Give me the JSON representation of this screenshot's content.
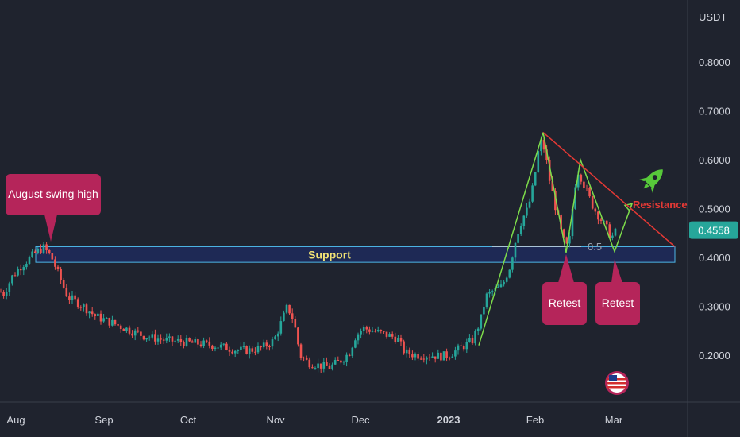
{
  "chart_data": {
    "type": "candlestick",
    "currency": "USDT",
    "y_ticks": [
      "0.8000",
      "0.7000",
      "0.6000",
      "0.5000",
      "0.4000",
      "0.3000",
      "0.2000"
    ],
    "x_ticks": [
      "Aug",
      "Sep",
      "Oct",
      "Nov",
      "Dec",
      "2023",
      "Feb",
      "Mar"
    ],
    "last_price": "0.4558",
    "support_zone": {
      "label": "Support",
      "low": 0.39,
      "high": 0.422
    },
    "fib_level": "0.5",
    "resistance_label": "Resistance",
    "callouts": {
      "swing_high": "August swing high",
      "retest_1": "Retest",
      "retest_2": "Retest"
    },
    "price_path": [
      [
        0,
        0.33
      ],
      [
        5,
        0.325
      ],
      [
        15,
        0.36
      ],
      [
        25,
        0.38
      ],
      [
        35,
        0.395
      ],
      [
        45,
        0.41
      ],
      [
        55,
        0.42
      ],
      [
        65,
        0.4
      ],
      [
        75,
        0.36
      ],
      [
        85,
        0.32
      ],
      [
        95,
        0.31
      ],
      [
        105,
        0.3
      ],
      [
        120,
        0.28
      ],
      [
        135,
        0.27
      ],
      [
        150,
        0.26
      ],
      [
        165,
        0.25
      ],
      [
        180,
        0.24
      ],
      [
        195,
        0.235
      ],
      [
        210,
        0.23
      ],
      [
        225,
        0.228
      ],
      [
        240,
        0.225
      ],
      [
        255,
        0.223
      ],
      [
        270,
        0.22
      ],
      [
        285,
        0.215
      ],
      [
        300,
        0.21
      ],
      [
        315,
        0.21
      ],
      [
        330,
        0.215
      ],
      [
        345,
        0.23
      ],
      [
        355,
        0.27
      ],
      [
        362,
        0.3
      ],
      [
        370,
        0.27
      ],
      [
        378,
        0.2
      ],
      [
        388,
        0.185
      ],
      [
        400,
        0.18
      ],
      [
        415,
        0.175
      ],
      [
        430,
        0.19
      ],
      [
        440,
        0.205
      ],
      [
        448,
        0.24
      ],
      [
        458,
        0.255
      ],
      [
        470,
        0.25
      ],
      [
        480,
        0.245
      ],
      [
        490,
        0.24
      ],
      [
        500,
        0.235
      ],
      [
        510,
        0.205
      ],
      [
        525,
        0.2
      ],
      [
        540,
        0.2
      ],
      [
        555,
        0.198
      ],
      [
        565,
        0.2
      ],
      [
        575,
        0.21
      ],
      [
        585,
        0.22
      ],
      [
        595,
        0.23
      ],
      [
        605,
        0.27
      ],
      [
        612,
        0.32
      ],
      [
        620,
        0.33
      ],
      [
        632,
        0.34
      ],
      [
        642,
        0.38
      ],
      [
        650,
        0.44
      ],
      [
        658,
        0.48
      ],
      [
        665,
        0.5
      ],
      [
        672,
        0.55
      ],
      [
        680,
        0.64
      ],
      [
        686,
        0.62
      ],
      [
        692,
        0.56
      ],
      [
        700,
        0.5
      ],
      [
        707,
        0.45
      ],
      [
        713,
        0.42
      ],
      [
        718,
        0.44
      ],
      [
        722,
        0.52
      ],
      [
        727,
        0.58
      ],
      [
        733,
        0.56
      ],
      [
        740,
        0.53
      ],
      [
        748,
        0.5
      ],
      [
        756,
        0.48
      ],
      [
        764,
        0.46
      ],
      [
        770,
        0.44
      ],
      [
        777,
        0.4558
      ]
    ],
    "pattern_path": [
      [
        603,
        0.22
      ],
      [
        684,
        0.656
      ],
      [
        713,
        0.41
      ],
      [
        731,
        0.6
      ],
      [
        774,
        0.412
      ],
      [
        796,
        0.51
      ]
    ],
    "resistance_line": [
      [
        684,
        0.656
      ],
      [
        850,
        0.422
      ]
    ],
    "colors": {
      "up": "#26a69a",
      "down": "#ef5350",
      "zone": "#1e2a5a",
      "zone_border": "#4db6e6",
      "pattern": "#7ddc4b",
      "resistance": "#e53935",
      "callout": "#b5255a",
      "price_tag": "#26a69a",
      "support_text": "#f2e275"
    }
  },
  "icons": {
    "rocket": "rocket-icon",
    "flag": "us-flag-icon"
  }
}
